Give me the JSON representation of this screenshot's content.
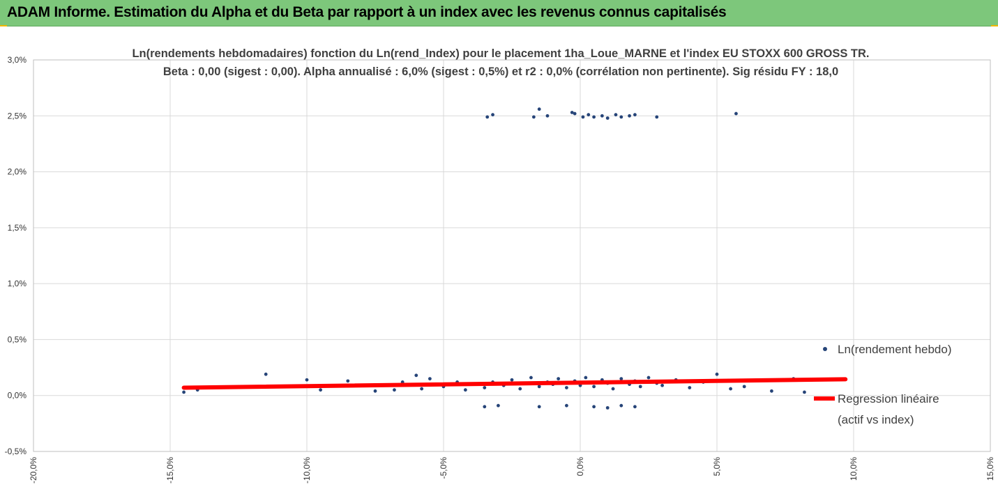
{
  "header": {
    "title": "ADAM Informe. Estimation du Alpha et du Beta par rapport à un index avec les revenus connus capitalisés"
  },
  "colors": {
    "header_bg": "#7dc77b",
    "points": "#264478",
    "regression": "#ff0000",
    "accent": "#f2b705"
  },
  "chart_data": {
    "type": "scatter",
    "title_line1": "Ln(rendements hebdomadaires) fonction du Ln(rend_Index) pour le placement 1ha_Loue_MARNE et l'index EU STOXX 600 GROSS TR.",
    "title_line2": "Beta : 0,00 (sigest : 0,00). Alpha annualisé : 6,0% (sigest : 0,5%) et r2 : 0,0% (corrélation non pertinente). Sig résidu FY : 18,0",
    "xlim": [
      -20,
      15
    ],
    "ylim": [
      -0.5,
      3.0
    ],
    "x_ticks": [
      -20,
      -15,
      -10,
      -5,
      0,
      5,
      10,
      15
    ],
    "x_tick_labels": [
      "-20,0%",
      "-15,0%",
      "-10,0%",
      "-5,0%",
      "0,0%",
      "5,0%",
      "10,0%",
      "15,0%"
    ],
    "y_ticks": [
      -0.5,
      0,
      0.5,
      1.0,
      1.5,
      2.0,
      2.5,
      3.0
    ],
    "y_tick_labels": [
      "-0,5%",
      "0,0%",
      "0,5%",
      "1,0%",
      "1,5%",
      "2,0%",
      "2,5%",
      "3,0%"
    ],
    "grid": true,
    "legend_position": "right",
    "series": [
      {
        "name": "Ln(rendement hebdo)",
        "kind": "points",
        "x": [
          -14.5,
          -14.0,
          -11.5,
          -10.0,
          -9.5,
          -8.5,
          -7.5,
          -6.8,
          -6.5,
          -6.0,
          -5.8,
          -5.5,
          -5.0,
          -4.5,
          -4.2,
          -3.8,
          -3.5,
          -3.2,
          -2.8,
          -2.5,
          -2.2,
          -2.0,
          -1.8,
          -1.5,
          -1.2,
          -1.0,
          -0.8,
          -0.5,
          -0.2,
          0.0,
          0.2,
          0.5,
          0.8,
          1.0,
          1.2,
          1.5,
          1.8,
          2.0,
          2.2,
          2.5,
          2.8,
          3.0,
          3.5,
          4.0,
          4.5,
          5.0,
          5.5,
          6.0,
          7.0,
          7.8,
          8.2,
          -3.5,
          -3.0,
          -1.5,
          -0.5,
          0.5,
          1.0,
          1.5,
          2.0,
          -3.4,
          -3.2,
          -1.7,
          -1.5,
          -1.2,
          -0.3,
          -0.2,
          0.1,
          0.3,
          0.5,
          0.8,
          1.0,
          1.3,
          1.5,
          1.8,
          2.0,
          2.8,
          5.7
        ],
        "y": [
          0.03,
          0.05,
          0.19,
          0.14,
          0.05,
          0.13,
          0.04,
          0.05,
          0.12,
          0.18,
          0.06,
          0.15,
          0.08,
          0.12,
          0.05,
          0.1,
          0.07,
          0.12,
          0.09,
          0.14,
          0.06,
          0.11,
          0.16,
          0.08,
          0.12,
          0.1,
          0.15,
          0.07,
          0.13,
          0.09,
          0.16,
          0.08,
          0.14,
          0.11,
          0.06,
          0.15,
          0.1,
          0.13,
          0.08,
          0.16,
          0.11,
          0.09,
          0.14,
          0.07,
          0.12,
          0.19,
          0.06,
          0.08,
          0.04,
          0.15,
          0.03,
          -0.1,
          -0.09,
          -0.1,
          -0.09,
          -0.1,
          -0.11,
          -0.09,
          -0.1,
          2.49,
          2.51,
          2.49,
          2.56,
          2.5,
          2.53,
          2.52,
          2.49,
          2.51,
          2.49,
          2.5,
          2.48,
          2.51,
          2.49,
          2.5,
          2.51,
          2.49,
          2.52
        ]
      },
      {
        "name": "Regression linéaire (actif vs index)",
        "kind": "line",
        "x": [
          -14.5,
          9.7
        ],
        "y": [
          0.07,
          0.145
        ]
      }
    ],
    "legend": [
      "Ln(rendement hebdo)",
      "Regression linéaire",
      "(actif vs index)"
    ]
  }
}
